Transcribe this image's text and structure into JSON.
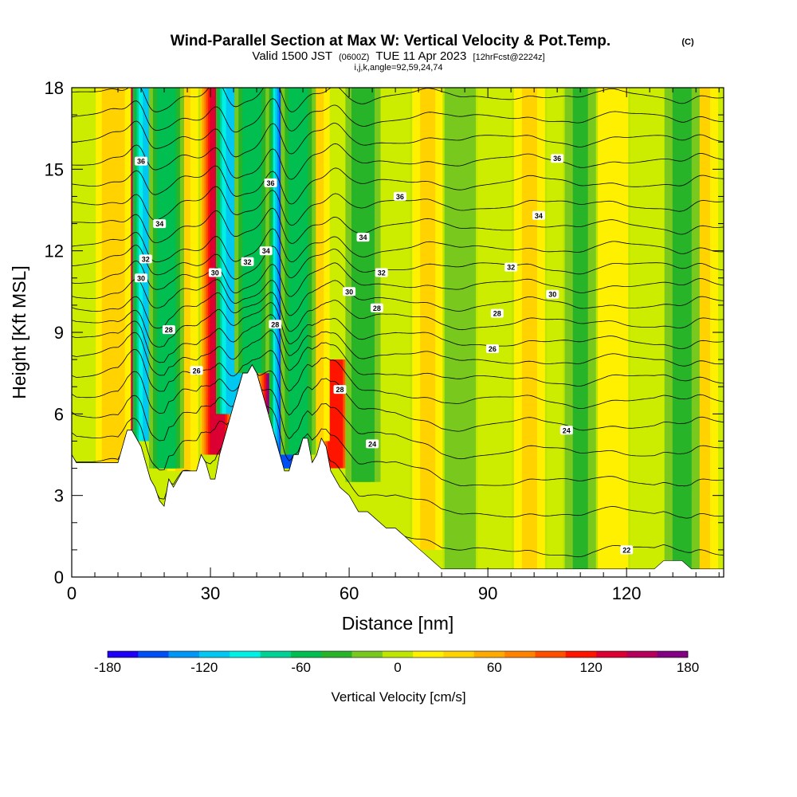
{
  "chart_data": {
    "type": "heatmap",
    "title": "Wind-Parallel Section at Max W: Vertical Velocity & Pot.Temp.",
    "title_mark": "(C)",
    "subtitle_main": "Valid 1500 JST",
    "subtitle_utc": "(0600Z)",
    "subtitle_date": "TUE 11 Apr 2023",
    "subtitle_fcst": "[12hrFcst@2224z]",
    "subtitle_ijk": "i,j,k,angle=92,59,24,74",
    "xlabel": "Distance [nm]",
    "ylabel": "Height [Kft MSL]",
    "xlim": [
      0,
      141
    ],
    "ylim": [
      0,
      18
    ],
    "x_ticks": [
      "0",
      "30",
      "60",
      "90",
      "120"
    ],
    "y_ticks": [
      "0",
      "3",
      "6",
      "9",
      "12",
      "15",
      "18"
    ],
    "colorbar": {
      "label": "Vertical Velocity [cm/s]",
      "ticks": [
        "-180",
        "-120",
        "-60",
        "0",
        "60",
        "120",
        "180"
      ],
      "range": [
        -180,
        180
      ],
      "colors": [
        "#1e00f5",
        "#0050f5",
        "#0096f5",
        "#00c8f0",
        "#00f0e6",
        "#00d296",
        "#00be50",
        "#28b428",
        "#78c81e",
        "#bee600",
        "#fff000",
        "#ffd200",
        "#ffaa00",
        "#ff8200",
        "#ff5000",
        "#ff1400",
        "#dc0032",
        "#b4005a",
        "#820082"
      ]
    },
    "terrain": {
      "x": [
        0,
        1,
        2,
        4,
        6,
        8,
        10,
        12,
        13,
        15,
        16,
        17,
        18,
        19,
        20,
        21,
        22,
        24,
        26,
        27,
        28,
        29,
        30,
        31,
        32,
        33,
        34,
        35,
        36,
        37,
        38,
        39,
        40,
        41,
        42,
        43,
        44,
        45,
        46,
        47,
        48,
        49,
        50,
        51,
        52,
        53,
        54,
        55,
        56,
        57,
        58,
        60,
        62,
        64,
        66,
        68,
        70,
        72,
        74,
        76,
        78,
        80,
        82,
        84,
        100,
        110,
        120,
        126,
        128,
        130,
        132,
        134,
        136,
        138,
        141
      ],
      "height_kft": [
        4.5,
        4.2,
        4.2,
        4.2,
        4.2,
        4.2,
        4.2,
        5.4,
        5.4,
        4.8,
        4.2,
        3.6,
        3.3,
        2.8,
        2.6,
        3.6,
        3.3,
        3.9,
        3.9,
        3.9,
        4.5,
        4.2,
        3.6,
        3.6,
        4.5,
        5.1,
        5.7,
        6.3,
        6.9,
        7.5,
        7.5,
        7.8,
        7.5,
        6.9,
        6.3,
        5.7,
        5.1,
        4.5,
        3.9,
        3.9,
        4.5,
        4.5,
        5.1,
        5.1,
        4.2,
        4.5,
        5.1,
        4.8,
        3.9,
        3.6,
        3.3,
        3.0,
        2.4,
        2.4,
        2.1,
        1.8,
        1.8,
        1.5,
        1.2,
        0.9,
        0.6,
        0.3,
        0.3,
        0.3,
        0.3,
        0.3,
        0.3,
        0.3,
        0.6,
        0.6,
        0.6,
        0.3,
        0.3,
        0.3,
        0.3
      ]
    },
    "updraft_bands": [
      {
        "x": 14.5,
        "w_cm_s": 150,
        "from_kft": 5.4,
        "to_kft": 18
      },
      {
        "x": 31.5,
        "w_cm_s": 130,
        "from_kft": 4.5,
        "to_kft": 18
      },
      {
        "x": 44,
        "w_cm_s": 170,
        "from_kft": 6.0,
        "to_kft": 18
      },
      {
        "x": 57,
        "w_cm_s": 110,
        "from_kft": 4.0,
        "to_kft": 8
      },
      {
        "x": 9,
        "w_cm_s": 40,
        "from_kft": 4.2,
        "to_kft": 18
      },
      {
        "x": 24,
        "w_cm_s": 30,
        "from_kft": 3.9,
        "to_kft": 18
      },
      {
        "x": 52,
        "w_cm_s": 40,
        "from_kft": 5.0,
        "to_kft": 18
      },
      {
        "x": 77,
        "w_cm_s": 30,
        "from_kft": 1.0,
        "to_kft": 18
      },
      {
        "x": 99,
        "w_cm_s": 30,
        "from_kft": 0.3,
        "to_kft": 18
      },
      {
        "x": 117,
        "w_cm_s": 25,
        "from_kft": 0.3,
        "to_kft": 18
      },
      {
        "x": 136,
        "w_cm_s": 35,
        "from_kft": 0.3,
        "to_kft": 18
      }
    ],
    "downdraft_bands": [
      {
        "x": 17,
        "w_cm_s": -120,
        "from_kft": 5.0,
        "to_kft": 18
      },
      {
        "x": 20.5,
        "w_cm_s": -60,
        "from_kft": 4.0,
        "to_kft": 18
      },
      {
        "x": 35,
        "w_cm_s": -120,
        "from_kft": 6.0,
        "to_kft": 18
      },
      {
        "x": 39,
        "w_cm_s": -60,
        "from_kft": 7.5,
        "to_kft": 18
      },
      {
        "x": 46.5,
        "w_cm_s": -150,
        "from_kft": 4.0,
        "to_kft": 18
      },
      {
        "x": 49,
        "w_cm_s": -60,
        "from_kft": 4.5,
        "to_kft": 18
      },
      {
        "x": 63,
        "w_cm_s": -40,
        "from_kft": 3.5,
        "to_kft": 18
      },
      {
        "x": 84,
        "w_cm_s": -25,
        "from_kft": 0.3,
        "to_kft": 18
      },
      {
        "x": 110,
        "w_cm_s": -30,
        "from_kft": 0.3,
        "to_kft": 18
      },
      {
        "x": 132,
        "w_cm_s": -35,
        "from_kft": 0.3,
        "to_kft": 18
      }
    ],
    "isentropes_kft": [
      0.8,
      2.2,
      3.4,
      4.5,
      5.5,
      6.4,
      7.2,
      7.9,
      8.6,
      9.3,
      10.0,
      10.7,
      11.4,
      12.1,
      12.9,
      13.7,
      14.5,
      15.3,
      16.1,
      16.9,
      17.7
    ],
    "contour_labels": [
      {
        "text": "36",
        "x": 15,
        "y": 15.3
      },
      {
        "text": "34",
        "x": 19,
        "y": 13.0
      },
      {
        "text": "32",
        "x": 16,
        "y": 11.7
      },
      {
        "text": "30",
        "x": 15,
        "y": 11.0
      },
      {
        "text": "28",
        "x": 21,
        "y": 9.1
      },
      {
        "text": "26",
        "x": 27,
        "y": 7.6
      },
      {
        "text": "30",
        "x": 31,
        "y": 11.2
      },
      {
        "text": "32",
        "x": 38,
        "y": 11.6
      },
      {
        "text": "34",
        "x": 42,
        "y": 12.0
      },
      {
        "text": "36",
        "x": 43,
        "y": 14.5
      },
      {
        "text": "28",
        "x": 44,
        "y": 9.3
      },
      {
        "text": "28",
        "x": 58,
        "y": 6.9
      },
      {
        "text": "24",
        "x": 65,
        "y": 4.9
      },
      {
        "text": "34",
        "x": 63,
        "y": 12.5
      },
      {
        "text": "30",
        "x": 60,
        "y": 10.5
      },
      {
        "text": "32",
        "x": 67,
        "y": 11.2
      },
      {
        "text": "28",
        "x": 66,
        "y": 9.9
      },
      {
        "text": "36",
        "x": 71,
        "y": 14.0
      },
      {
        "text": "26",
        "x": 91,
        "y": 8.4
      },
      {
        "text": "28",
        "x": 92,
        "y": 9.7
      },
      {
        "text": "32",
        "x": 95,
        "y": 11.4
      },
      {
        "text": "34",
        "x": 101,
        "y": 13.3
      },
      {
        "text": "36",
        "x": 105,
        "y": 15.4
      },
      {
        "text": "30",
        "x": 104,
        "y": 10.4
      },
      {
        "text": "24",
        "x": 107,
        "y": 5.4
      },
      {
        "text": "22",
        "x": 120,
        "y": 1.0
      }
    ]
  }
}
